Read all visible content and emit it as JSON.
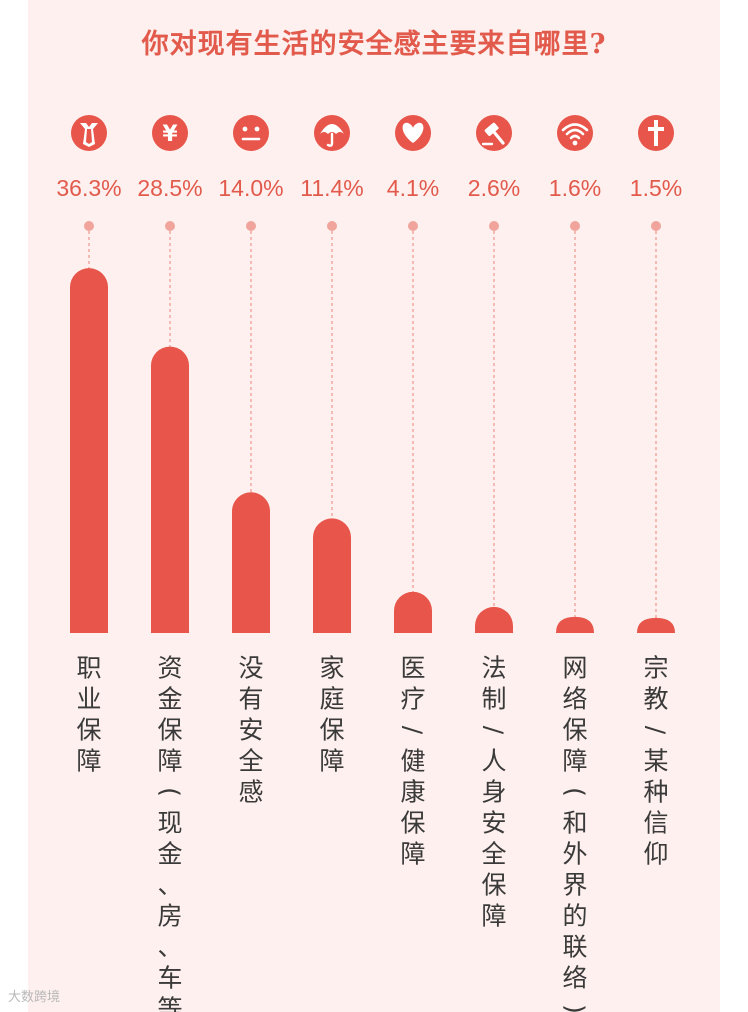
{
  "chart_data": {
    "type": "bar",
    "title": "你对现有生活的安全感主要来自哪里?",
    "categories": [
      "职业保障",
      "资金保障(现金、房、车等)",
      "没有安全感",
      "家庭保障",
      "医疗/健康保障",
      "法制/人身安全保障",
      "网络保障(和外界的联络)",
      "宗教/某种信仰"
    ],
    "values": [
      36.3,
      28.5,
      14.0,
      11.4,
      4.1,
      2.6,
      1.6,
      1.5
    ],
    "value_labels": [
      "36.3%",
      "28.5%",
      "14.0%",
      "11.4%",
      "4.1%",
      "2.6%",
      "1.6%",
      "1.5%"
    ],
    "icons": [
      "tie-icon",
      "yen-icon",
      "neutral-face-icon",
      "umbrella-icon",
      "heart-icon",
      "gavel-icon",
      "wifi-icon",
      "cross-icon"
    ],
    "unit": "%",
    "ylim": [
      0,
      40
    ],
    "grid": false,
    "colors": {
      "bar": "#e8554a",
      "text": "#e25a4c",
      "guide": "#f0a49c",
      "background": "#fdf0ee"
    }
  },
  "watermark": "大数跨境"
}
